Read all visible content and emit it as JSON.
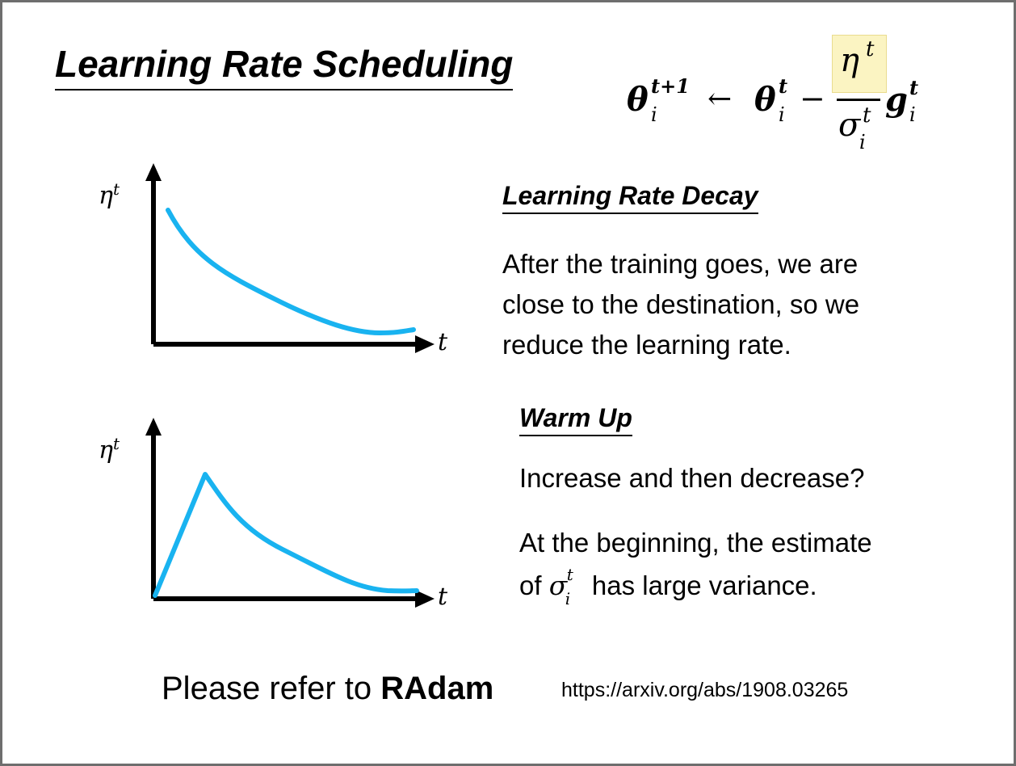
{
  "title": "Learning Rate Scheduling",
  "formula": {
    "theta": "θ",
    "sub_i": "i",
    "sup_t_plus_1": "t+1",
    "sup_t": "t",
    "arrow": "←",
    "minus": "−",
    "eta": "η",
    "sigma": "σ",
    "g": "g"
  },
  "plots": {
    "y_label_symbol": "η",
    "y_label_sup": "t",
    "x_label": "t"
  },
  "decay": {
    "heading": "Learning Rate Decay",
    "lines": [
      "After the training goes, we are",
      "close to the destination, so we",
      "reduce the learning rate."
    ]
  },
  "warmup": {
    "heading": "Warm Up",
    "line1": "Increase and then decrease?",
    "line2": "At the beginning, the estimate",
    "line3_prefix": "of",
    "line3_suffix": "has large variance."
  },
  "footer": {
    "refer_prefix": "Please refer to",
    "refer_bold": "RAdam",
    "url": "https://arxiv.org/abs/1908.03265"
  },
  "colors": {
    "curve": "#19b3f0",
    "highlight": "#fbf4c2"
  }
}
